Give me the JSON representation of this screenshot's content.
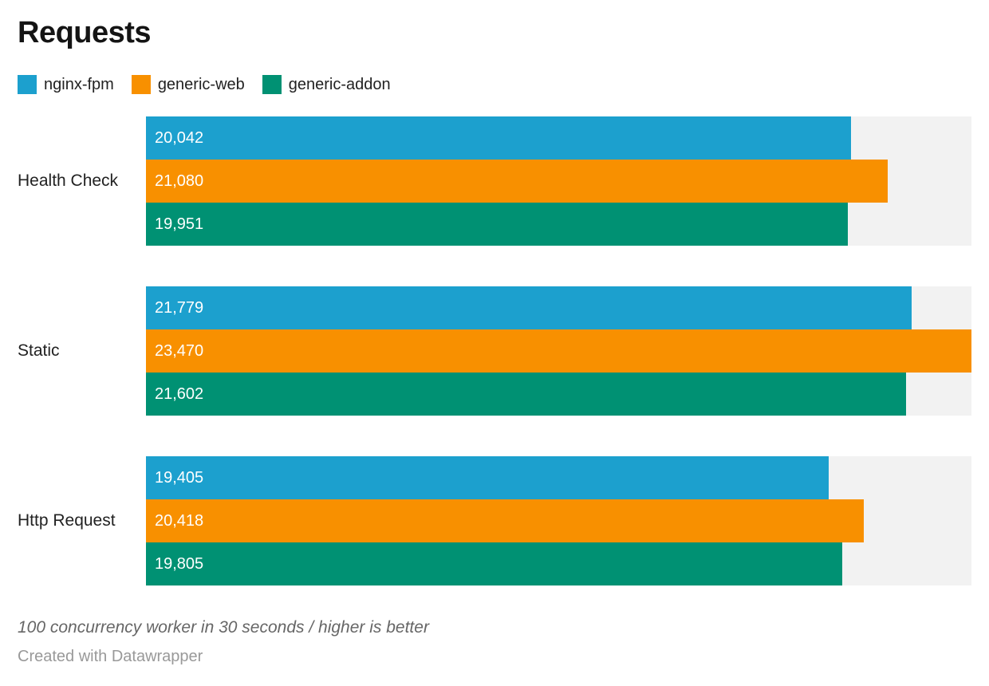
{
  "chart_data": {
    "type": "bar",
    "orientation": "horizontal",
    "title": "Requests",
    "categories": [
      "Health Check",
      "Static",
      "Http Request"
    ],
    "series": [
      {
        "name": "nginx-fpm",
        "color": "#1CA0CE",
        "values": [
          20042,
          21779,
          19405
        ],
        "labels": [
          "20,042",
          "21,779",
          "19,405"
        ]
      },
      {
        "name": "generic-web",
        "color": "#F89000",
        "values": [
          21080,
          23470,
          20418
        ],
        "labels": [
          "21,080",
          "23,470",
          "20,418"
        ]
      },
      {
        "name": "generic-addon",
        "color": "#009173",
        "values": [
          19951,
          21602,
          19805
        ],
        "labels": [
          "19,951",
          "21,602",
          "19,805"
        ]
      }
    ],
    "xlim": [
      0,
      23470
    ],
    "value_labels_inside": true,
    "grid": false,
    "legend_position": "top",
    "track_color": "#F2F2F2"
  },
  "footer": {
    "note": "100 concurrency worker in 30 seconds / higher is better",
    "attribution": "Created with Datawrapper"
  }
}
